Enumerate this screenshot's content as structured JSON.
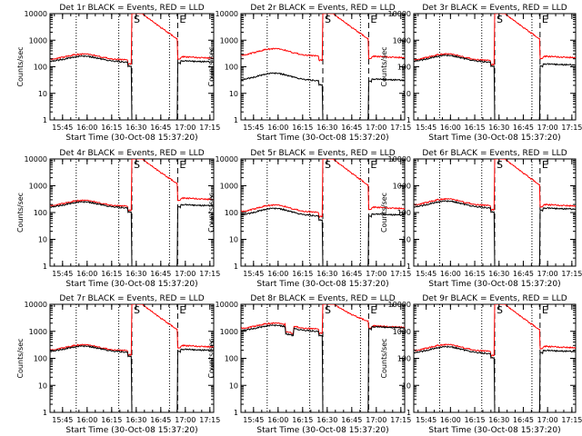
{
  "chart_data": {
    "type": "line",
    "layout": "3x3 grid",
    "grid": false,
    "colors": {
      "events": "#000000",
      "lld": "#ff0000",
      "axes": "#000000"
    },
    "xlabel": "Start Time (30-Oct-08 15:37:20)",
    "ylabel": "Counts/sec",
    "xlim_minutes_after_start": [
      0,
      100
    ],
    "x_tick_labels": [
      "15:45",
      "16:00",
      "16:15",
      "16:30",
      "16:45",
      "17:00",
      "17:15"
    ],
    "x_tick_minutes_after_start": [
      7.67,
      22.67,
      37.67,
      52.67,
      67.67,
      82.67,
      97.67
    ],
    "yscale": "log",
    "ylim": [
      1,
      10000
    ],
    "y_tick_labels": [
      "1",
      "10",
      "100",
      "1000",
      "10000"
    ],
    "markers": [
      {
        "label": "S",
        "minutes_after_start": 50,
        "style": "dashed"
      },
      {
        "label": "E",
        "minutes_after_start": 78,
        "style": "dashed"
      },
      {
        "label": "",
        "minutes_after_start": 16,
        "style": "dotted"
      },
      {
        "label": "",
        "minutes_after_start": 42,
        "style": "dotted"
      },
      {
        "label": "",
        "minutes_after_start": 73,
        "style": "dotted"
      }
    ],
    "panels": [
      {
        "title": "Det 1r BLACK = Events, RED = LLD",
        "events_base": 150,
        "lld_base": 180,
        "hump": 0.22,
        "events_after": 170,
        "lld_after": 240,
        "dip": false
      },
      {
        "title": "Det 2r BLACK = Events, RED = LLD",
        "events_base": 30,
        "lld_base": 250,
        "hump": 0.28,
        "events_after": 35,
        "lld_after": 250,
        "dip": false
      },
      {
        "title": "Det 3r BLACK = Events, RED = LLD",
        "events_base": 150,
        "lld_base": 170,
        "hump": 0.25,
        "events_after": 130,
        "lld_after": 250,
        "dip": false
      },
      {
        "title": "Det 4r BLACK = Events, RED = LLD",
        "events_base": 150,
        "lld_base": 170,
        "hump": 0.22,
        "events_after": 200,
        "lld_after": 350,
        "dip": false
      },
      {
        "title": "Det 5r BLACK = Events, RED = LLD",
        "events_base": 75,
        "lld_base": 100,
        "hump": 0.28,
        "events_after": 90,
        "lld_after": 160,
        "dip": false
      },
      {
        "title": "Det 6r BLACK = Events, RED = LLD",
        "events_base": 150,
        "lld_base": 180,
        "hump": 0.25,
        "events_after": 150,
        "lld_after": 200,
        "dip": false
      },
      {
        "title": "Det 7r BLACK = Events, RED = LLD",
        "events_base": 170,
        "lld_base": 190,
        "hump": 0.22,
        "events_after": 220,
        "lld_after": 300,
        "dip": false
      },
      {
        "title": "Det 8r BLACK = Events, RED = LLD",
        "events_base": 1000,
        "lld_base": 1200,
        "hump": 0.22,
        "events_after": 1500,
        "lld_after": 1600,
        "dip": true
      },
      {
        "title": "Det 9r BLACK = Events, RED = LLD",
        "events_base": 150,
        "lld_base": 180,
        "hump": 0.25,
        "events_after": 200,
        "lld_after": 280,
        "dip": false
      }
    ]
  }
}
